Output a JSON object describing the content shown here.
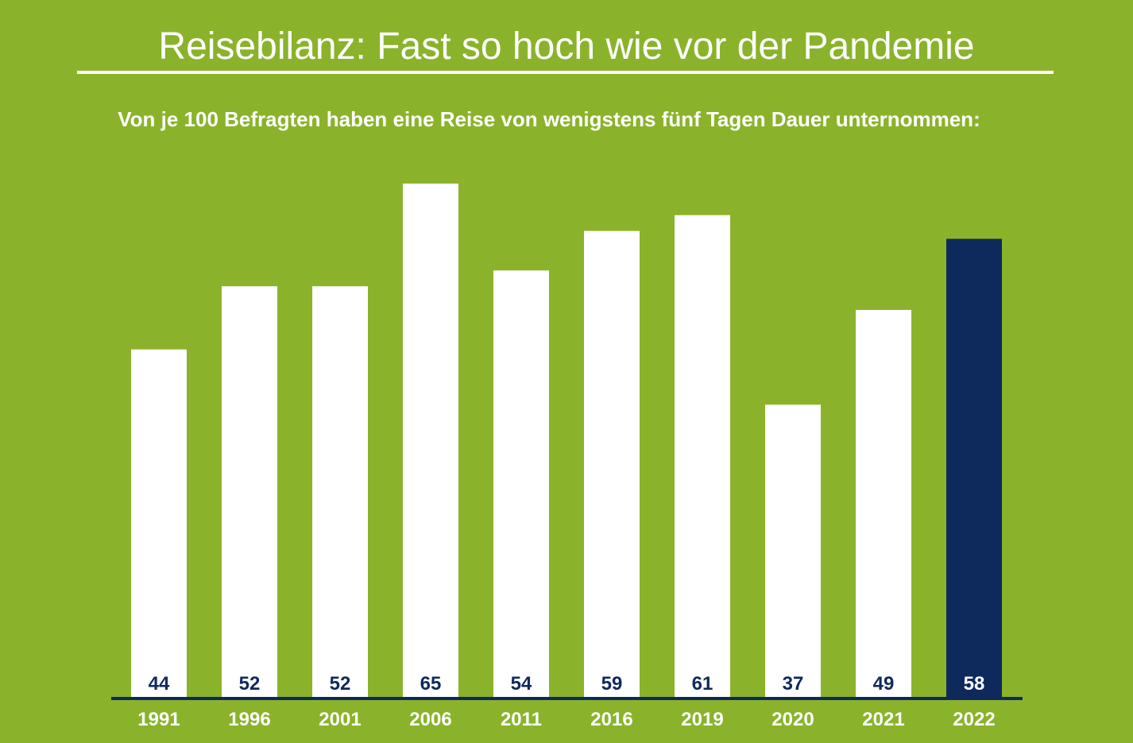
{
  "colors": {
    "background": "#8ab32b",
    "bar_default": "#ffffff",
    "bar_highlight": "#0e2a5c",
    "label_on_default": "#0e2a5c",
    "label_on_highlight": "#ffffff",
    "axis": "#0e2a5c",
    "text": "#ffffff"
  },
  "chart_data": {
    "type": "bar",
    "title": "Reisebilanz: Fast so hoch wie vor der Pandemie",
    "subtitle": "Von je 100 Befragten haben eine Reise von wenigstens fünf Tagen Dauer unternommen:",
    "categories": [
      "1991",
      "1996",
      "2001",
      "2006",
      "2011",
      "2016",
      "2019",
      "2020",
      "2021",
      "2022"
    ],
    "values": [
      44,
      52,
      52,
      65,
      54,
      59,
      61,
      37,
      49,
      58
    ],
    "highlight_index": 9,
    "xlabel": "",
    "ylabel": "",
    "ylim": [
      0,
      65
    ],
    "grid": false,
    "legend": "none"
  }
}
